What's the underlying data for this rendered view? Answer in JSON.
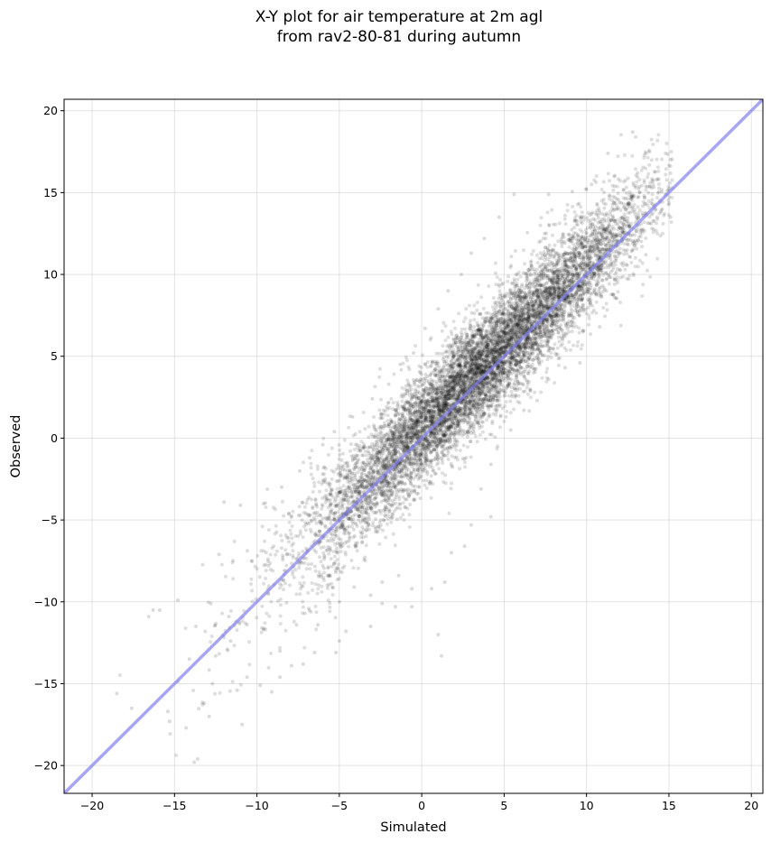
{
  "chart_data": {
    "type": "scatter",
    "title_lines": [
      "X-Y plot for air temperature at 2m agl",
      "from rav2-80-81 during autumn"
    ],
    "xlabel": "Simulated",
    "ylabel": "Observed",
    "xlim": [
      -21.7,
      20.7
    ],
    "ylim": [
      -21.7,
      20.7
    ],
    "xticks": [
      -20,
      -15,
      -10,
      -5,
      0,
      5,
      10,
      15,
      20
    ],
    "yticks": [
      -20,
      -15,
      -10,
      -5,
      0,
      5,
      10,
      15,
      20
    ],
    "tick_labels_x": [
      "−20",
      "−15",
      "−10",
      "−5",
      "0",
      "5",
      "10",
      "15",
      "20"
    ],
    "tick_labels_y": [
      "−20",
      "−15",
      "−10",
      "−5",
      "0",
      "5",
      "10",
      "15",
      "20"
    ],
    "grid": true,
    "series": [
      {
        "kind": "points",
        "color": "#000000",
        "opacity": 0.14,
        "points": [
          [
            -18.5,
            -15.6
          ],
          [
            -17.6,
            -16.5
          ],
          [
            -16.3,
            -10.5
          ],
          [
            -15.9,
            -10.5
          ],
          [
            -15.4,
            -16.7
          ],
          [
            -15.3,
            -17.3
          ],
          [
            -14.8,
            -9.9
          ],
          [
            -14.3,
            -17.7
          ],
          [
            -14.1,
            -13.5
          ],
          [
            -13.8,
            -19.8
          ],
          [
            -13.6,
            -19.6
          ],
          [
            -13.2,
            -16.2
          ],
          [
            -12.9,
            -17.0
          ],
          [
            -12.7,
            -15.0
          ],
          [
            -12.5,
            -13.3
          ],
          [
            -12.3,
            -7.1
          ],
          [
            -11.6,
            -12.4
          ],
          [
            -11.2,
            -15.4
          ],
          [
            -10.9,
            -17.5
          ],
          [
            -10.6,
            -14.6
          ],
          [
            -9.8,
            -15.1
          ],
          [
            -9.1,
            -15.5
          ],
          [
            -8.6,
            -14.6
          ],
          [
            -7.9,
            -13.9
          ],
          [
            -7.2,
            -13.8
          ],
          [
            -6.5,
            -13.1
          ],
          [
            -5.2,
            -13.1
          ],
          [
            -5.0,
            -12.4
          ],
          [
            -4.6,
            -11.8
          ],
          [
            -3.1,
            -11.5
          ],
          [
            -2.4,
            -10.1
          ],
          [
            -1.6,
            -10.3
          ],
          [
            -0.6,
            -10.3
          ],
          [
            1.0,
            -12.0
          ],
          [
            1.2,
            -13.3
          ],
          [
            -12.0,
            -3.9
          ],
          [
            -11.0,
            -4.1
          ],
          [
            -9.6,
            -4.0
          ],
          [
            -8.5,
            -3.0
          ],
          [
            -7.4,
            -2.0
          ],
          [
            -6.8,
            -1.2
          ],
          [
            -6.0,
            -0.4
          ],
          [
            -5.3,
            0.4
          ],
          [
            -4.2,
            1.3
          ],
          [
            -3.0,
            2.4
          ],
          [
            -2.0,
            3.3
          ],
          [
            -1.3,
            4.5
          ],
          [
            -0.5,
            5.2
          ],
          [
            0.2,
            6.7
          ],
          [
            1.0,
            7.9
          ],
          [
            1.6,
            9.0
          ],
          [
            2.4,
            10.0
          ],
          [
            3.0,
            11.3
          ],
          [
            3.8,
            12.2
          ],
          [
            4.7,
            13.5
          ],
          [
            5.6,
            14.9
          ],
          [
            7.7,
            14.9
          ],
          [
            8.7,
            13.6
          ],
          [
            10.0,
            15.2
          ],
          [
            10.3,
            15.5
          ],
          [
            11.3,
            17.4
          ],
          [
            12.8,
            18.7
          ],
          [
            13.1,
            16.2
          ],
          [
            14.1,
            14.2
          ],
          [
            14.8,
            17.4
          ],
          [
            15.1,
            13.5
          ],
          [
            13.6,
            11.2
          ],
          [
            12.4,
            10.6
          ],
          [
            11.7,
            9.4
          ],
          [
            10.8,
            6.8
          ],
          [
            9.8,
            6.5
          ],
          [
            9.6,
            4.6
          ],
          [
            8.7,
            4.3
          ],
          [
            7.7,
            3.6
          ],
          [
            7.0,
            2.3
          ],
          [
            6.2,
            1.7
          ],
          [
            5.4,
            0.5
          ],
          [
            4.6,
            -0.5
          ],
          [
            4.2,
            -1.6
          ],
          [
            3.6,
            -3.1
          ],
          [
            4.2,
            -4.8
          ],
          [
            3.0,
            -5.3
          ],
          [
            2.6,
            -6.6
          ],
          [
            1.8,
            -7.0
          ],
          [
            1.4,
            -8.8
          ],
          [
            0.6,
            -9.2
          ],
          [
            -0.6,
            -9.2
          ],
          [
            -1.4,
            -8.4
          ],
          [
            -2.4,
            -8.8
          ],
          [
            -3.1,
            -9.6
          ],
          [
            -4.1,
            -9.1
          ],
          [
            -5.0,
            -10.0
          ],
          [
            -6.3,
            -11.4
          ],
          [
            -7.6,
            -11.4
          ],
          [
            -8.6,
            -13.0
          ],
          [
            -9.6,
            -11.7
          ],
          [
            -10.6,
            -11.4
          ],
          [
            -11.7,
            -10.9
          ],
          [
            -12.8,
            -10.1
          ],
          [
            -13.7,
            -11.5
          ]
        ]
      },
      {
        "kind": "cloud",
        "color": "#000000",
        "opacity": 0.13,
        "slope": 1.0,
        "intercept": 0.6,
        "spread_sd": 1.7,
        "x_range": [
          -19.5,
          15.2
        ],
        "density_center": 3.5
      },
      {
        "kind": "line",
        "label": "1:1 line",
        "color": "#8080ef",
        "opacity": 0.7,
        "x": [
          -21.7,
          20.7
        ],
        "y": [
          -21.7,
          20.7
        ]
      }
    ]
  }
}
